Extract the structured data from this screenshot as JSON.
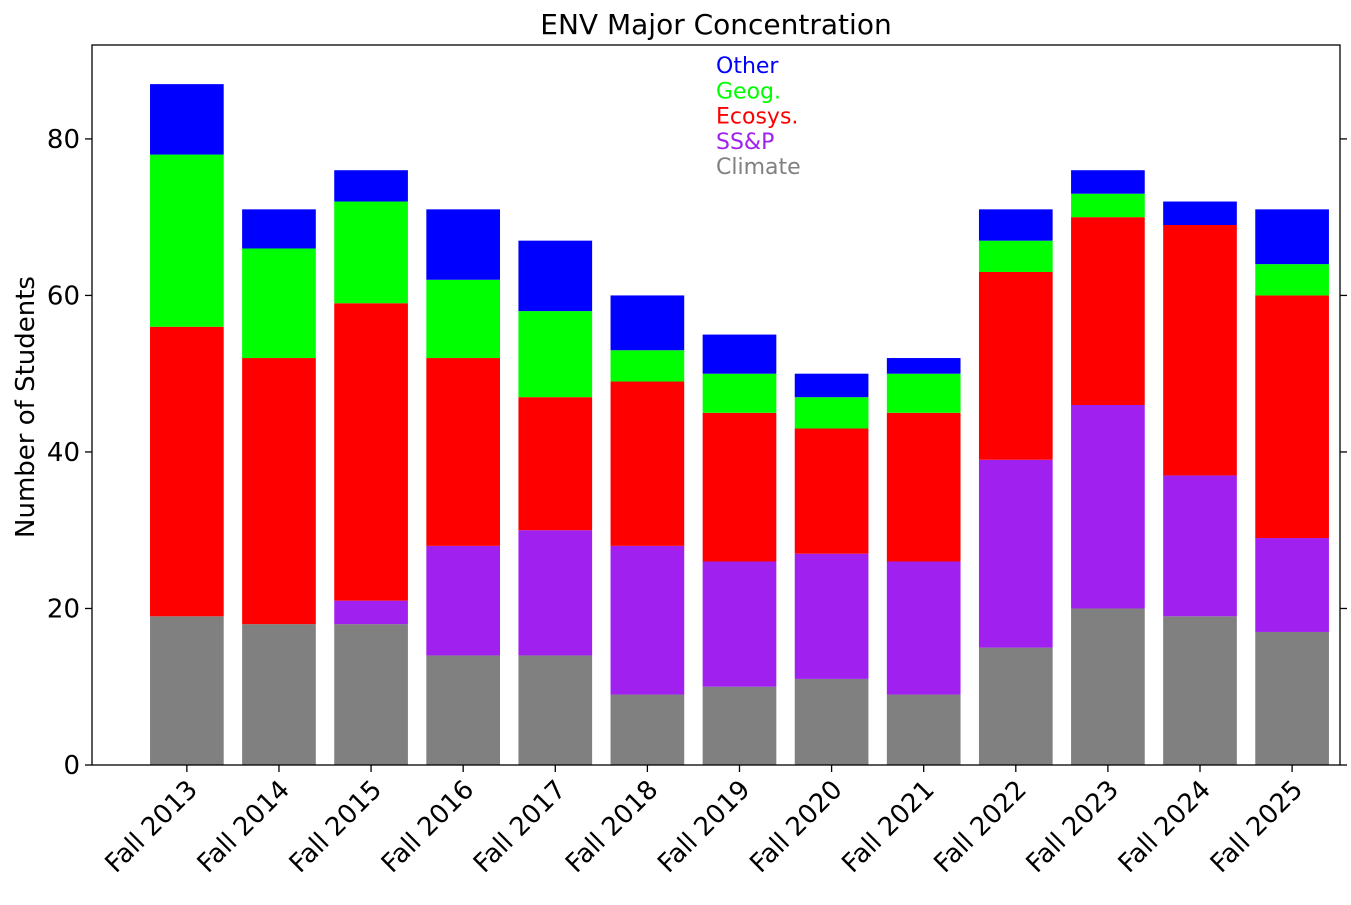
{
  "chart_data": {
    "type": "bar",
    "stacked": true,
    "title": "ENV Major Concentration",
    "xlabel": "",
    "ylabel": "Number of Students",
    "ylim": [
      0,
      92
    ],
    "yticks": [
      0,
      20,
      40,
      60,
      80
    ],
    "grid": false,
    "legend_placement": "top-center",
    "categories": [
      "Fall 2013",
      "Fall 2014",
      "Fall 2015",
      "Fall 2016",
      "Fall 2017",
      "Fall 2018",
      "Fall 2019",
      "Fall 2020",
      "Fall 2021",
      "Fall 2022",
      "Fall 2023",
      "Fall 2024",
      "Fall 2025"
    ],
    "series": [
      {
        "name": "Climate",
        "color": "#808080",
        "values": [
          19,
          18,
          18,
          14,
          14,
          9,
          10,
          11,
          9,
          15,
          20,
          19,
          17
        ]
      },
      {
        "name": "SS&P",
        "color": "#a020f0",
        "values": [
          0,
          0,
          3,
          14,
          16,
          19,
          16,
          16,
          17,
          24,
          26,
          18,
          12
        ]
      },
      {
        "name": "Ecosys.",
        "color": "#ff0000",
        "values": [
          37,
          34,
          38,
          24,
          17,
          21,
          19,
          16,
          19,
          24,
          24,
          32,
          31
        ]
      },
      {
        "name": "Geog.",
        "color": "#00ff00",
        "values": [
          22,
          14,
          13,
          10,
          11,
          4,
          5,
          4,
          5,
          4,
          3,
          0,
          4
        ]
      },
      {
        "name": "Other",
        "color": "#0000ff",
        "values": [
          9,
          5,
          4,
          9,
          9,
          7,
          5,
          3,
          2,
          4,
          3,
          3,
          7
        ]
      }
    ],
    "legend_order": [
      "Other",
      "Geog.",
      "Ecosys.",
      "SS&P",
      "Climate"
    ]
  }
}
